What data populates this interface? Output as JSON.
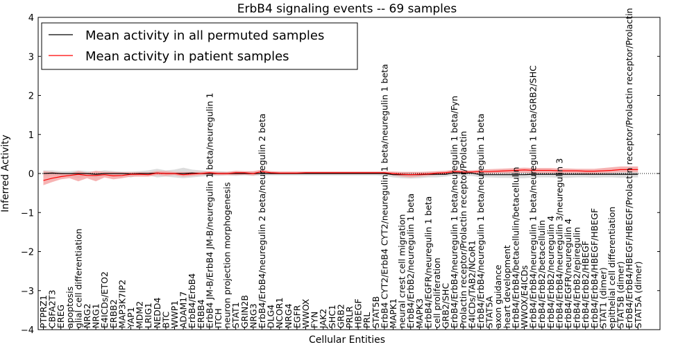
{
  "chart_data": {
    "type": "line",
    "title": "ErbB4 signaling events -- 69 samples",
    "xlabel": "Cellular Entities",
    "ylabel": "Inferred Activity",
    "ylim": [
      -4,
      4
    ],
    "yticks": [
      -4,
      -3,
      -2,
      -1,
      0,
      1,
      2,
      3,
      4
    ],
    "legend_position": "top-left",
    "grid": false,
    "colors": {
      "permuted": "#000000",
      "patient": "#ff0000",
      "patient_band": "#f4a0a0",
      "permuted_band": "#d0d0d0"
    },
    "categories": [
      "PTPRZ1",
      "CBFA2T3",
      "EREG",
      "apoptosis",
      "glial cell differentiation",
      "NRG2",
      "NRG1",
      "E4ICDs/ETO2",
      "ERBB2",
      "MAP3K7IP2",
      "YAP1",
      "MDM2",
      "LRIG1",
      "NEDD4",
      "BTC",
      "WWP1",
      "ADAM17",
      "ErbB4/ErbB4",
      "ERBB4",
      "ErbB4 JM-B/ErbB4 JM-B/neuregulin 1 beta/neuregulin 1",
      "ITCH",
      "neuron projection morphogenesis",
      "STAT1",
      "GRIN2B",
      "NRG3",
      "ErbB4/ErbB4/neuregulin 2 beta/neuregulin 2 beta",
      "DLG4",
      "NCOR1",
      "NRG4",
      "EGFR",
      "WWOX",
      "FYN",
      "JAK2",
      "SHC1",
      "GRB2",
      "PRLR",
      "HBEGF",
      "PRL",
      "STAT5B",
      "ErbB4 CYT2/ErbB4 CYT2/neuregulin 1 beta/neuregulin 1 beta",
      "MAPK1",
      "neural crest cell migration",
      "ErbB4/ErbB2/neuregulin 1 beta",
      "MAPK3",
      "ErbB4/EGFR/neuregulin 1 beta",
      "cell proliferation",
      "GRB2/SHC",
      "ErbB4/ErbB4/neuregulin 1 beta/neuregulin 1 beta/Fyn",
      "Prolactin receptor/Prolactin receptor/Prolactin",
      "E4ICDs/TAB2/NCoR1",
      "ErbB4/ErbB4/neuregulin 1 beta/neuregulin 1 beta",
      "STAT5A",
      "axon guidance",
      "heart development",
      "ErbB4/ErbB4/betacellulin/betacellulin",
      "WWOX/E4ICDs",
      "ErbB4/ErbB4/neuregulin 1 beta/neuregulin 1 beta/GRB2/SHC",
      "ErbB4/ErbB2/betacellulin",
      "ErbB4/ErbB2/neuregulin 4",
      "ErbB4/ErbB4/neuregulin 3/neuregulin 3",
      "ErbB4/EGFR/neuregulin 4",
      "ErbB4/ErbB2/epiregulin",
      "ErbB4/ErbB2/HBEGF",
      "ErbB4/ErbB4/HBEGF/HBEGF",
      "STAT1 (dimer)",
      "epithelial cell differentiation",
      "STAT5B (dimer)",
      "ErbB4/ErbB4/HBEGF/HBEGF/Prolactin receptor/Prolactin receptor/Prolactin",
      "STAT5A (dimer)"
    ],
    "series": [
      {
        "name": "Mean activity in all permuted samples",
        "values": [
          0.0,
          0.01,
          0.0,
          0.0,
          0.0,
          0.0,
          -0.02,
          0.0,
          0.0,
          0.0,
          -0.01,
          0.0,
          0.0,
          0.01,
          0.0,
          0.0,
          0.0,
          0.01,
          0.0,
          0.0,
          0.0,
          0.0,
          0.0,
          0.0,
          0.0,
          0.0,
          0.0,
          0.0,
          0.0,
          0.0,
          0.0,
          0.0,
          0.0,
          0.0,
          0.0,
          0.0,
          0.0,
          0.0,
          0.0,
          0.0,
          -0.03,
          -0.03,
          -0.03,
          -0.03,
          -0.02,
          -0.02,
          -0.02,
          0.02,
          0.01,
          0.01,
          -0.03,
          -0.03,
          -0.03,
          -0.03,
          -0.03,
          -0.03,
          -0.02,
          -0.02,
          -0.02,
          -0.02,
          -0.02,
          -0.02,
          -0.02,
          -0.02,
          -0.02,
          -0.02,
          -0.02,
          -0.02,
          -0.02
        ],
        "lower": [
          -0.08,
          -0.05,
          -0.06,
          -0.08,
          -0.12,
          -0.06,
          -0.1,
          -0.06,
          -0.05,
          -0.06,
          -0.1,
          -0.05,
          -0.05,
          -0.1,
          -0.08,
          -0.1,
          -0.12,
          -0.1,
          -0.08,
          -0.06,
          -0.06,
          -0.05,
          -0.06,
          -0.05,
          -0.06,
          -0.05,
          -0.05,
          -0.05,
          -0.05,
          -0.05,
          -0.05,
          -0.05,
          -0.05,
          -0.05,
          -0.05,
          -0.05,
          -0.05,
          -0.05,
          -0.05,
          -0.06,
          -0.1,
          -0.12,
          -0.13,
          -0.12,
          -0.1,
          -0.1,
          -0.08,
          -0.05,
          -0.06,
          -0.06,
          -0.1,
          -0.1,
          -0.11,
          -0.11,
          -0.12,
          -0.12,
          -0.1,
          -0.1,
          -0.1,
          -0.11,
          -0.11,
          -0.1,
          -0.1,
          -0.11,
          -0.1,
          -0.1,
          -0.11,
          -0.1,
          -0.1
        ],
        "upper": [
          0.08,
          0.08,
          0.06,
          0.06,
          0.08,
          0.06,
          0.05,
          0.08,
          0.06,
          0.05,
          0.05,
          0.06,
          0.08,
          0.12,
          0.08,
          0.1,
          0.15,
          0.1,
          0.08,
          0.06,
          0.06,
          0.05,
          0.06,
          0.05,
          0.06,
          0.05,
          0.05,
          0.05,
          0.05,
          0.05,
          0.05,
          0.05,
          0.05,
          0.05,
          0.05,
          0.05,
          0.05,
          0.05,
          0.05,
          0.05,
          0.04,
          0.04,
          0.04,
          0.04,
          0.04,
          0.04,
          0.04,
          0.08,
          0.06,
          0.06,
          0.04,
          0.04,
          0.04,
          0.04,
          0.04,
          0.04,
          0.04,
          0.04,
          0.04,
          0.04,
          0.04,
          0.04,
          0.04,
          0.04,
          0.04,
          0.04,
          0.04,
          0.04,
          0.04
        ]
      },
      {
        "name": "Mean activity in patient samples",
        "values": [
          -0.18,
          -0.12,
          -0.08,
          -0.05,
          -0.02,
          -0.05,
          -0.05,
          -0.03,
          -0.06,
          -0.05,
          -0.02,
          -0.02,
          -0.03,
          0.01,
          0.0,
          0.0,
          -0.03,
          -0.01,
          0.0,
          0.02,
          0.0,
          0.0,
          0.02,
          0.02,
          0.0,
          0.05,
          0.02,
          0.01,
          0.01,
          0.01,
          0.02,
          0.02,
          0.02,
          0.02,
          0.02,
          0.02,
          0.02,
          0.02,
          0.02,
          0.02,
          0.0,
          -0.02,
          -0.03,
          -0.02,
          -0.01,
          0.01,
          0.02,
          0.05,
          0.04,
          0.04,
          0.05,
          0.05,
          0.06,
          0.07,
          0.08,
          0.09,
          0.08,
          0.08,
          0.08,
          0.07,
          0.07,
          0.07,
          0.06,
          0.06,
          0.07,
          0.08,
          0.1,
          0.1,
          0.1
        ],
        "lower": [
          -0.3,
          -0.22,
          -0.15,
          -0.12,
          -0.2,
          -0.12,
          -0.2,
          -0.1,
          -0.15,
          -0.12,
          -0.08,
          -0.08,
          -0.08,
          -0.04,
          -0.06,
          -0.04,
          -0.08,
          -0.06,
          -0.04,
          -0.03,
          -0.04,
          -0.04,
          -0.04,
          -0.03,
          -0.05,
          0.0,
          -0.02,
          -0.02,
          -0.02,
          -0.02,
          -0.01,
          -0.01,
          -0.01,
          -0.01,
          -0.01,
          -0.01,
          -0.01,
          -0.01,
          -0.01,
          -0.01,
          -0.05,
          -0.08,
          -0.1,
          -0.08,
          -0.06,
          -0.04,
          -0.03,
          0.0,
          0.0,
          0.0,
          0.0,
          0.0,
          0.01,
          0.01,
          0.02,
          0.02,
          0.01,
          0.01,
          0.01,
          0.01,
          0.01,
          0.01,
          0.0,
          0.0,
          0.01,
          0.02,
          0.03,
          0.03,
          0.03
        ],
        "upper": [
          0.06,
          0.04,
          0.02,
          0.0,
          0.06,
          0.02,
          0.07,
          0.04,
          0.04,
          0.03,
          0.03,
          0.03,
          0.03,
          0.06,
          0.06,
          0.04,
          0.04,
          0.04,
          0.04,
          0.06,
          0.04,
          0.04,
          0.07,
          0.06,
          0.06,
          0.1,
          0.06,
          0.05,
          0.05,
          0.05,
          0.05,
          0.05,
          0.05,
          0.05,
          0.05,
          0.05,
          0.05,
          0.05,
          0.05,
          0.05,
          0.05,
          0.04,
          0.04,
          0.04,
          0.05,
          0.06,
          0.07,
          0.1,
          0.08,
          0.08,
          0.1,
          0.11,
          0.12,
          0.13,
          0.14,
          0.15,
          0.14,
          0.14,
          0.14,
          0.13,
          0.13,
          0.12,
          0.12,
          0.12,
          0.14,
          0.16,
          0.18,
          0.18,
          0.18
        ]
      }
    ]
  }
}
